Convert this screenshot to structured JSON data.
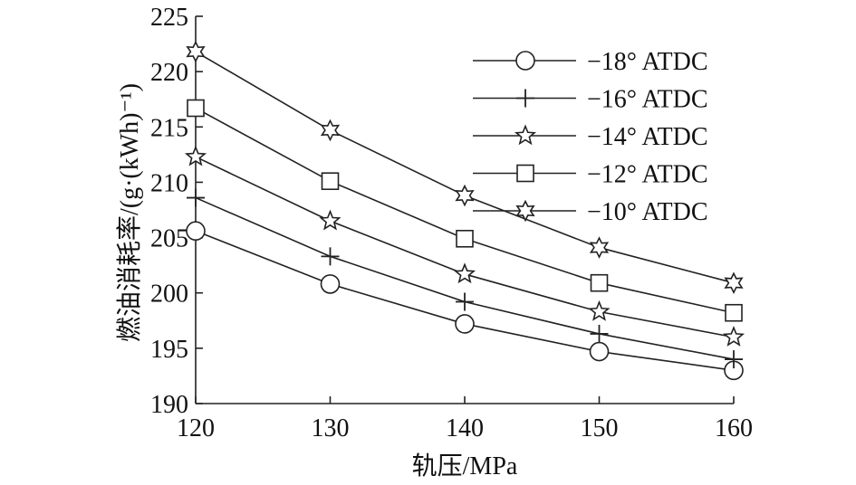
{
  "chart_data": {
    "type": "line",
    "title": "",
    "xlabel": "轨压/MPa",
    "ylabel": "燃油消耗率/(g·(kWh)⁻¹)",
    "x": [
      120,
      130,
      140,
      150,
      160
    ],
    "xlim": [
      120,
      160
    ],
    "ylim": [
      190,
      225
    ],
    "xticks": [
      120,
      130,
      140,
      150,
      160
    ],
    "yticks": [
      190,
      195,
      200,
      205,
      210,
      215,
      220,
      225
    ],
    "grid": false,
    "legend_position": "top-right",
    "series": [
      {
        "name": "−18° ATDC",
        "marker": "circle",
        "values": [
          205.6,
          200.8,
          197.2,
          194.7,
          193.0
        ]
      },
      {
        "name": "−16° ATDC",
        "marker": "plus",
        "values": [
          208.6,
          203.3,
          199.2,
          196.3,
          194.0
        ]
      },
      {
        "name": "−14° ATDC",
        "marker": "star",
        "values": [
          212.3,
          206.5,
          201.7,
          198.3,
          196.0
        ]
      },
      {
        "name": "−12° ATDC",
        "marker": "square",
        "values": [
          216.7,
          210.1,
          204.9,
          200.9,
          198.2
        ]
      },
      {
        "name": "−10° ATDC",
        "marker": "star6",
        "values": [
          221.8,
          214.7,
          208.8,
          204.1,
          200.9
        ]
      }
    ]
  }
}
